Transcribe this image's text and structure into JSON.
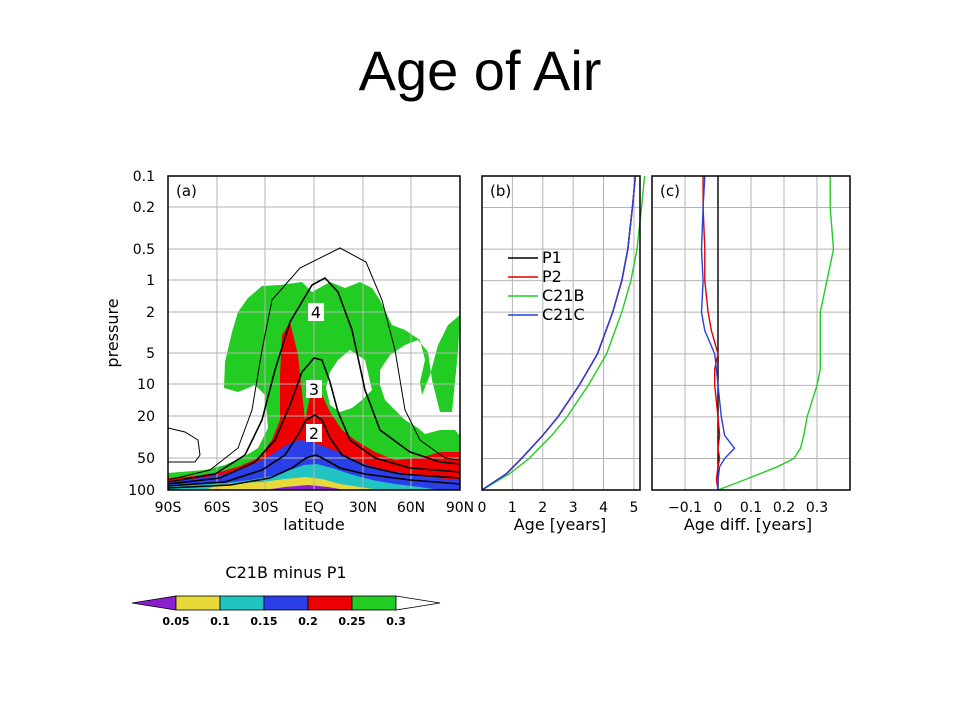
{
  "slide": {
    "title": "Age of Air"
  },
  "colors": {
    "purple": "#8b1fd0",
    "yellow": "#e8d838",
    "cyan": "#22c3c3",
    "blue": "#2b3fe8",
    "red": "#ee0000",
    "green": "#22cc22",
    "white": "#ffffff",
    "p1": "#000000",
    "p2": "#e00000",
    "c21b": "#22cc22",
    "c21c": "#2840e0",
    "grid": "#b4b4b4"
  },
  "chart_data": [
    {
      "panel": "(a)",
      "type": "heatmap",
      "xlabel": "latitude",
      "ylabel": "pressure",
      "x_ticks": [
        "90S",
        "60S",
        "30S",
        "EQ",
        "30N",
        "60N",
        "90N"
      ],
      "y_ticks": [
        "0.1",
        "0.2",
        "0.5",
        "1",
        "2",
        "5",
        "10",
        "20",
        "50",
        "100"
      ],
      "y_scale": "log",
      "ylim": [
        100,
        0.1
      ],
      "contour_labels": [
        "4",
        "3",
        "2"
      ],
      "colorbar": {
        "title": "C21B minus P1",
        "levels": [
          "0.05",
          "0.1",
          "0.15",
          "0.2",
          "0.25",
          "0.3"
        ],
        "colors": [
          "purple",
          "yellow",
          "cyan",
          "blue",
          "red",
          "green",
          "white"
        ]
      }
    },
    {
      "panel": "(b)",
      "type": "line",
      "xlabel": "Age [years]",
      "x_ticks": [
        "0",
        "1",
        "2",
        "3",
        "4",
        "5"
      ],
      "xlim": [
        0,
        5.2
      ],
      "y_scale": "log",
      "ylim": [
        100,
        0.1
      ],
      "legend_position": "upper-left",
      "pressure": [
        100,
        70,
        50,
        30,
        20,
        10,
        5,
        2,
        1,
        0.5,
        0.2,
        0.1
      ],
      "series": [
        {
          "name": "P1",
          "color": "p1",
          "values": [
            0,
            0.8,
            1.3,
            2.0,
            2.5,
            3.2,
            3.8,
            4.3,
            4.6,
            4.8,
            4.95,
            5.05
          ]
        },
        {
          "name": "P2",
          "color": "p2",
          "values": [
            0,
            0.8,
            1.3,
            2.0,
            2.5,
            3.2,
            3.8,
            4.3,
            4.6,
            4.8,
            4.95,
            5.05
          ]
        },
        {
          "name": "C21B",
          "color": "c21b",
          "values": [
            0,
            0.9,
            1.55,
            2.3,
            2.8,
            3.5,
            4.1,
            4.6,
            4.9,
            5.1,
            5.25,
            5.35
          ]
        },
        {
          "name": "C21C",
          "color": "c21c",
          "values": [
            0,
            0.8,
            1.3,
            2.0,
            2.5,
            3.2,
            3.8,
            4.3,
            4.6,
            4.8,
            4.95,
            5.05
          ]
        }
      ]
    },
    {
      "panel": "(c)",
      "type": "line",
      "xlabel": "Age diff. [years]",
      "x_ticks": [
        "−0.1",
        "0",
        "0.1",
        "0.2",
        "0.3"
      ],
      "xlim": [
        -0.2,
        0.4
      ],
      "y_scale": "log",
      "ylim": [
        100,
        0.1
      ],
      "pressure": [
        100,
        80,
        60,
        50,
        40,
        30,
        20,
        10,
        7,
        5,
        3,
        2,
        1,
        0.5,
        0.2,
        0.1
      ],
      "series": [
        {
          "name": "P1",
          "color": "p1",
          "values": [
            0,
            0,
            0,
            0,
            0,
            0,
            0,
            0,
            0,
            0,
            0,
            0,
            0,
            0,
            0,
            0
          ]
        },
        {
          "name": "C21B",
          "color": "c21b",
          "values": [
            0,
            0.08,
            0.18,
            0.23,
            0.25,
            0.26,
            0.27,
            0.3,
            0.31,
            0.31,
            0.31,
            0.31,
            0.33,
            0.35,
            0.34,
            0.34
          ]
        },
        {
          "name": "P2",
          "color": "p2",
          "values": [
            0,
            -0.005,
            0,
            0.005,
            0,
            0.005,
            0,
            -0.01,
            -0.01,
            0,
            -0.02,
            -0.03,
            -0.04,
            -0.04,
            -0.045,
            -0.045
          ]
        },
        {
          "name": "C21C",
          "color": "c21c",
          "values": [
            0,
            0,
            0.005,
            0.02,
            0.05,
            0.02,
            0.01,
            0,
            -0.005,
            -0.01,
            -0.04,
            -0.05,
            -0.045,
            -0.05,
            -0.045,
            -0.04
          ]
        }
      ]
    }
  ]
}
